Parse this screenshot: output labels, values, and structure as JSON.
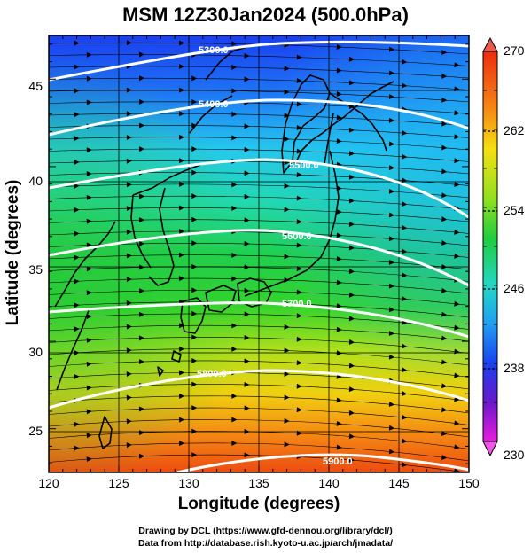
{
  "title": "MSM 12Z30Jan2024 (500.0hPa)",
  "x_axis": {
    "label": "Longitude (degrees)",
    "ticks": [
      "120",
      "125",
      "130",
      "135",
      "140",
      "145",
      "150"
    ]
  },
  "y_axis": {
    "label": "Latitude  (degrees)",
    "ticks": [
      "25",
      "30",
      "35",
      "40",
      "45"
    ]
  },
  "colorbar": {
    "max_label": "270",
    "min_label": "230",
    "ticks": [
      "262",
      "254",
      "246",
      "238"
    ]
  },
  "contour_labels": [
    "5300.0",
    "5400.0",
    "5500.0",
    "5600.0",
    "5700.0",
    "5800.0",
    "5900.0"
  ],
  "credits": {
    "line1": "Drawing by DCL (https://www.gfd-dennou.org/library/dcl/)",
    "line2": "Data from http://database.rish.kyoto-u.ac.jp/arch/jmadata/"
  },
  "chart_data": {
    "type": "heatmap",
    "variable": "temperature with geopotential height contours and wind arrows",
    "xlim": [
      120,
      150
    ],
    "ylim": [
      22.5,
      47.5
    ],
    "colorbar_range": [
      230,
      270
    ],
    "colorbar_ticks": [
      238,
      246,
      254,
      262
    ],
    "contour_levels": [
      5300,
      5400,
      5500,
      5600,
      5700,
      5800,
      5900
    ],
    "wind_direction": "westerly"
  }
}
